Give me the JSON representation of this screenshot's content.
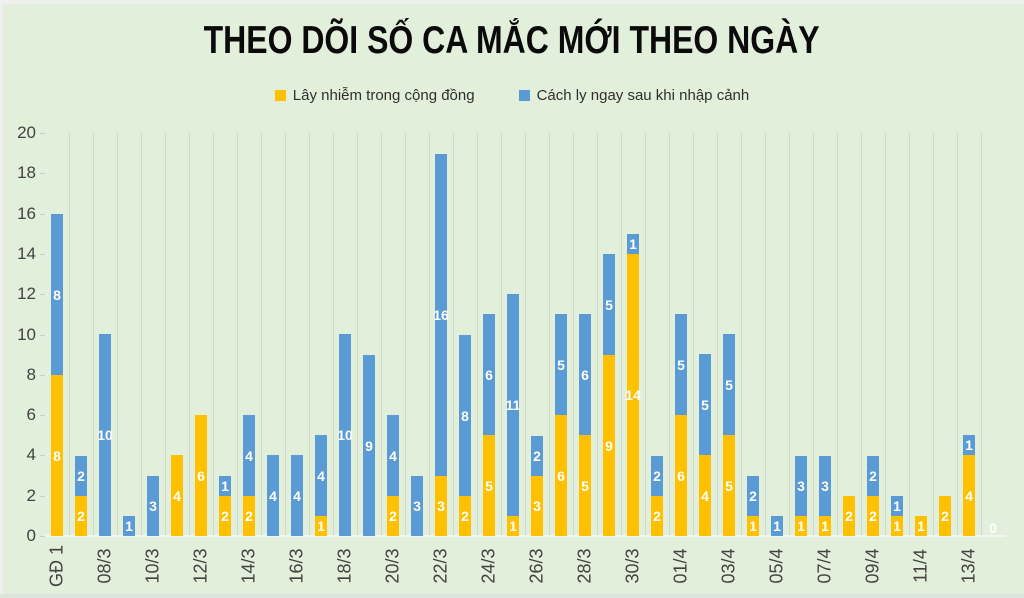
{
  "title": "THEO DÕI SỐ CA MẮC MỚI THEO NGÀY",
  "legend": [
    {
      "label": "Lây nhiễm trong cộng đồng",
      "color": "#FFC000"
    },
    {
      "label": "Cách ly ngay sau khi nhập cảnh",
      "color": "#5B9BD5"
    }
  ],
  "colors": {
    "background": "#e2efda",
    "community": "#FFC000",
    "quarantine": "#5B9BD5",
    "gridline": "#d2d7cd",
    "axis_text": "#424242",
    "bar_label": "#ffffff",
    "title_text": "#0a0a0a"
  },
  "chart_data": {
    "type": "bar",
    "stacked": true,
    "title": "THEO DÕI SỐ CA MẮC MỚI THEO NGÀY",
    "xlabel": "",
    "ylabel": "",
    "ylim": [
      0,
      20
    ],
    "y_ticks": [
      0,
      2,
      4,
      6,
      8,
      10,
      12,
      14,
      16,
      18,
      20
    ],
    "grid": "vertical-category-lines-only",
    "legend_position": "top-center",
    "categories": [
      "GĐ 1",
      "",
      "08/3",
      "",
      "10/3",
      "",
      "12/3",
      "",
      "14/3",
      "",
      "16/3",
      "",
      "18/3",
      "",
      "20/3",
      "",
      "22/3",
      "",
      "24/3",
      "",
      "26/3",
      "",
      "28/3",
      "",
      "30/3",
      "",
      "01/4",
      "",
      "03/4",
      "",
      "05/4",
      "",
      "07/4",
      "",
      "09/4",
      "",
      "11/4",
      "",
      "13/4",
      ""
    ],
    "series": [
      {
        "name": "Lây nhiễm trong cộng đồng",
        "color": "#FFC000",
        "values": [
          8,
          2,
          0,
          0,
          0,
          4,
          6,
          2,
          2,
          0,
          0,
          1,
          0,
          0,
          2,
          0,
          3,
          2,
          5,
          1,
          3,
          6,
          5,
          9,
          14,
          2,
          6,
          4,
          5,
          1,
          0,
          1,
          1,
          2,
          2,
          1,
          1,
          2,
          4,
          0
        ]
      },
      {
        "name": "Cách ly ngay sau khi nhập cảnh",
        "color": "#5B9BD5",
        "values": [
          8,
          2,
          10,
          1,
          3,
          0,
          0,
          1,
          4,
          4,
          4,
          4,
          10,
          9,
          4,
          3,
          16,
          8,
          6,
          11,
          2,
          5,
          6,
          5,
          1,
          2,
          5,
          5,
          5,
          2,
          1,
          3,
          3,
          0,
          2,
          1,
          0,
          0,
          1,
          0
        ]
      }
    ],
    "zero_total_label": "0",
    "bar_value_labels": "shown centered in each nonzero segment, white bold"
  }
}
